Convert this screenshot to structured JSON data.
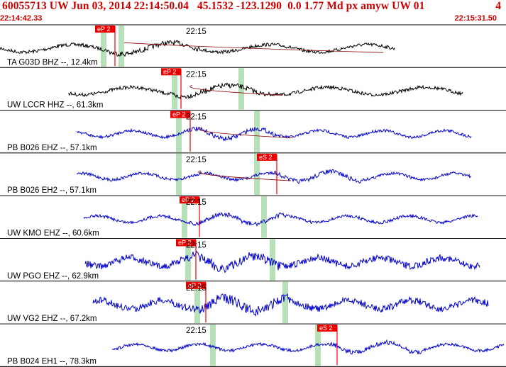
{
  "header": {
    "title": "60055713 UW Jun 03, 2014 22:14:50.04   45.1532 -123.1290  0.0 1.77 Md px amyw UW 01",
    "right": "4",
    "start_time": "22:14:42.33",
    "end_time": "22:15:31.50"
  },
  "colors": {
    "header_text": "#cc0000",
    "trace_first": "#000000",
    "trace": "#0000cc",
    "pick": "#ee0000",
    "window": "#b8e0b8",
    "separator": "#000000"
  },
  "minute_mark": "22:15",
  "channels": [
    {
      "label": "TA G03D BHZ --, 12.4km",
      "pick": "eP 2",
      "amp": "low",
      "trace_color": "black"
    },
    {
      "label": "UW LCCR HHZ --, 61.3km",
      "pick": "eP 2",
      "amp": "low",
      "trace_color": "black"
    },
    {
      "label": "PB B026 EHZ --, 57.1km",
      "pick": "eP 2",
      "amp": "med",
      "trace_color": "blue"
    },
    {
      "label": "PB B026 EH2 --, 57.1km",
      "pick": "eS 2",
      "amp": "med",
      "trace_color": "blue"
    },
    {
      "label": "UW KMO EHZ --, 60.6km",
      "pick": "eP 2",
      "amp": "med",
      "trace_color": "blue"
    },
    {
      "label": "UW PGO EHZ --, 62.9km",
      "pick": "eP 2",
      "amp": "high",
      "trace_color": "blue"
    },
    {
      "label": "UW VG2 EHZ --, 67.2km",
      "pick": "eP 2",
      "amp": "high",
      "trace_color": "blue"
    },
    {
      "label": "PB B024 EH1 --, 78.3km",
      "pick": "eS 2",
      "amp": "med",
      "trace_color": "blue"
    }
  ]
}
